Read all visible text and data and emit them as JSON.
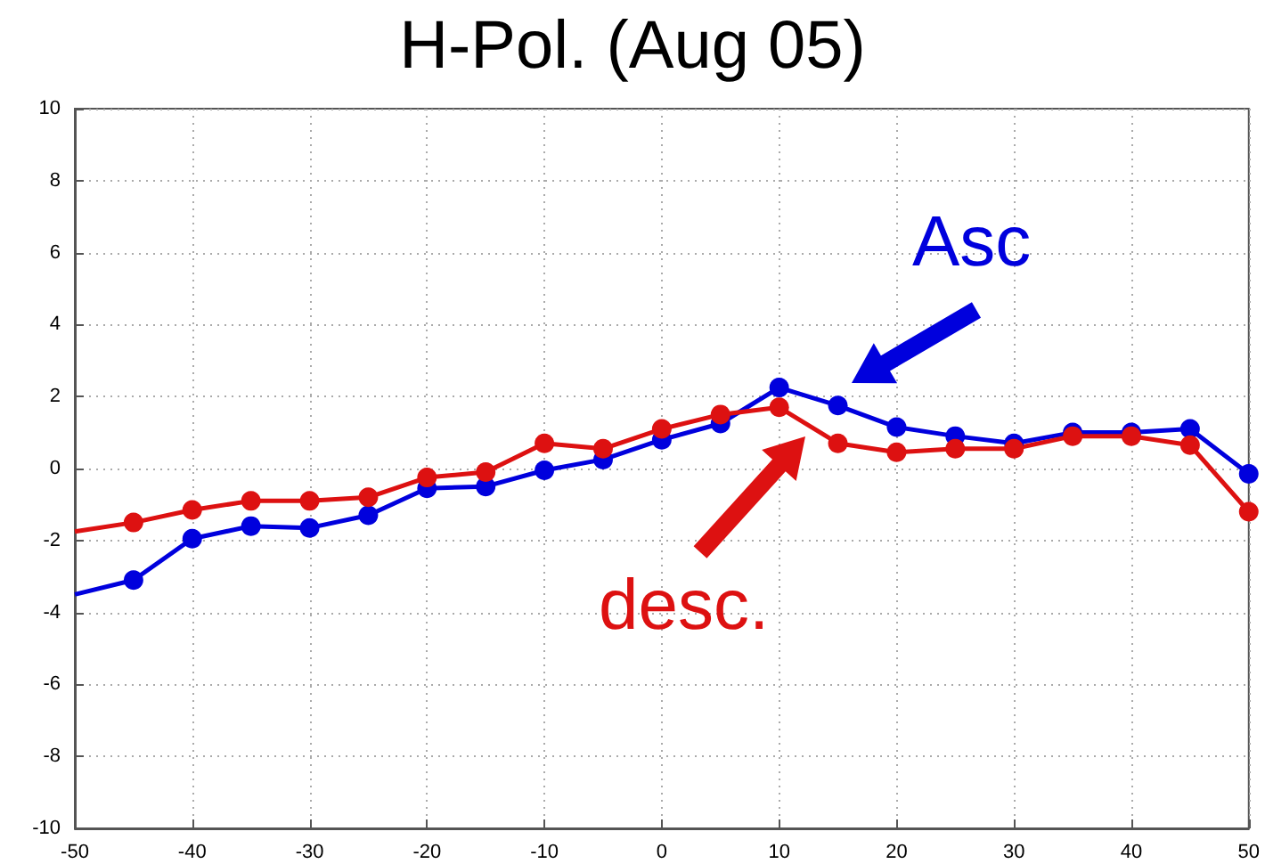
{
  "chart_data": {
    "type": "line",
    "title": "H-Pol. (Aug 05)",
    "x": [
      -50,
      -45,
      -40,
      -35,
      -30,
      -25,
      -20,
      -15,
      -10,
      -5,
      0,
      5,
      10,
      15,
      20,
      25,
      30,
      35,
      40,
      45,
      50
    ],
    "series": [
      {
        "color": "#0000dd",
        "values": [
          -3.5,
          -3.1,
          -1.95,
          -1.6,
          -1.65,
          -1.3,
          -0.55,
          -0.5,
          -0.05,
          0.25,
          0.8,
          1.25,
          2.25,
          1.75,
          1.15,
          0.9,
          0.7,
          1.0,
          1.0,
          1.1,
          -0.15
        ]
      },
      {
        "color": "#dd1111",
        "values": [
          -1.75,
          -1.5,
          -1.15,
          -0.9,
          -0.9,
          -0.8,
          -0.25,
          -0.1,
          0.7,
          0.55,
          1.1,
          1.5,
          1.7,
          0.7,
          0.45,
          0.55,
          0.55,
          0.9,
          0.9,
          0.65,
          -1.2
        ]
      }
    ],
    "annotations": [
      "Asc",
      "desc."
    ],
    "xlim": [
      -50,
      50
    ],
    "xticks": [
      -50,
      -40,
      -30,
      -20,
      -10,
      0,
      10,
      20,
      30,
      40,
      50
    ],
    "ylim": [
      -10,
      10
    ],
    "yticks": [
      -10,
      -8,
      -6,
      -4,
      -2,
      0,
      2,
      4,
      6,
      8,
      10
    ],
    "grid": true,
    "marker": "circle",
    "line_style": "solid"
  }
}
